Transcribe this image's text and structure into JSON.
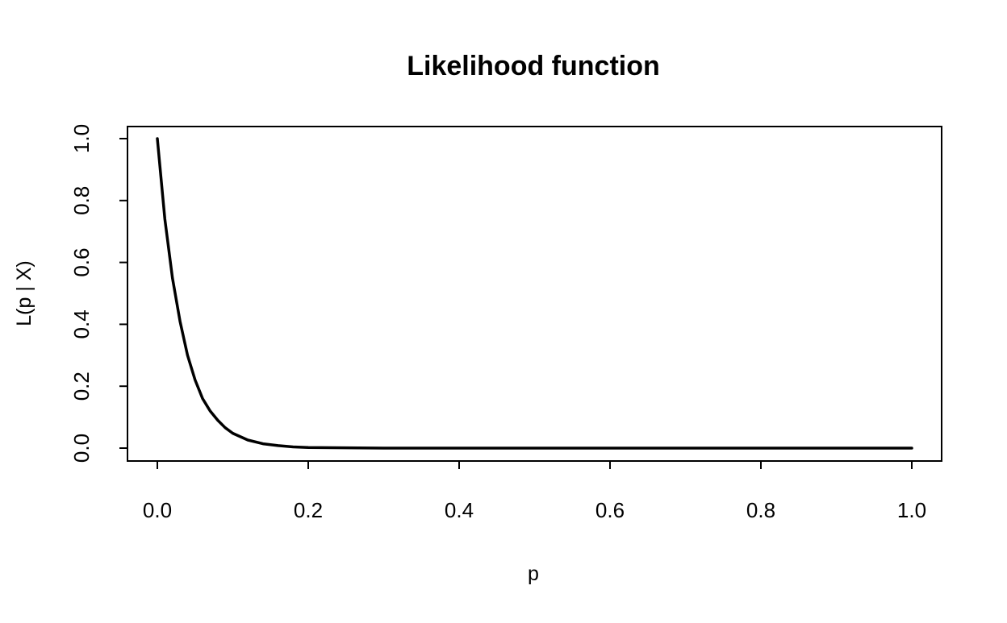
{
  "chart_data": {
    "type": "line",
    "title": "Likelihood function",
    "xlabel": "p",
    "ylabel": "L(p | X)",
    "xlim": [
      0,
      1
    ],
    "ylim": [
      0,
      1
    ],
    "x_ticks": [
      0.0,
      0.2,
      0.4,
      0.6,
      0.8,
      1.0
    ],
    "x_tick_labels": [
      "0.0",
      "0.2",
      "0.4",
      "0.6",
      "0.8",
      "1.0"
    ],
    "y_ticks": [
      0.0,
      0.2,
      0.4,
      0.6,
      0.8,
      1.0
    ],
    "y_tick_labels": [
      "0.0",
      "0.2",
      "0.4",
      "0.6",
      "0.8",
      "1.0"
    ],
    "grid": false,
    "legend": "none",
    "series": [
      {
        "color": "#000000",
        "x": [
          0.0,
          0.01,
          0.02,
          0.03,
          0.04,
          0.05,
          0.06,
          0.07,
          0.08,
          0.09,
          0.1,
          0.12,
          0.14,
          0.16,
          0.18,
          0.2,
          0.3,
          0.4,
          0.5,
          0.6,
          0.7,
          0.8,
          0.9,
          1.0
        ],
        "y": [
          1.0,
          0.74,
          0.55,
          0.41,
          0.3,
          0.22,
          0.16,
          0.12,
          0.09,
          0.066,
          0.048,
          0.026,
          0.014,
          0.008,
          0.004,
          0.002,
          0.0,
          0.0,
          0.0,
          0.0,
          0.0,
          0.0,
          0.0,
          0.0
        ]
      }
    ]
  }
}
